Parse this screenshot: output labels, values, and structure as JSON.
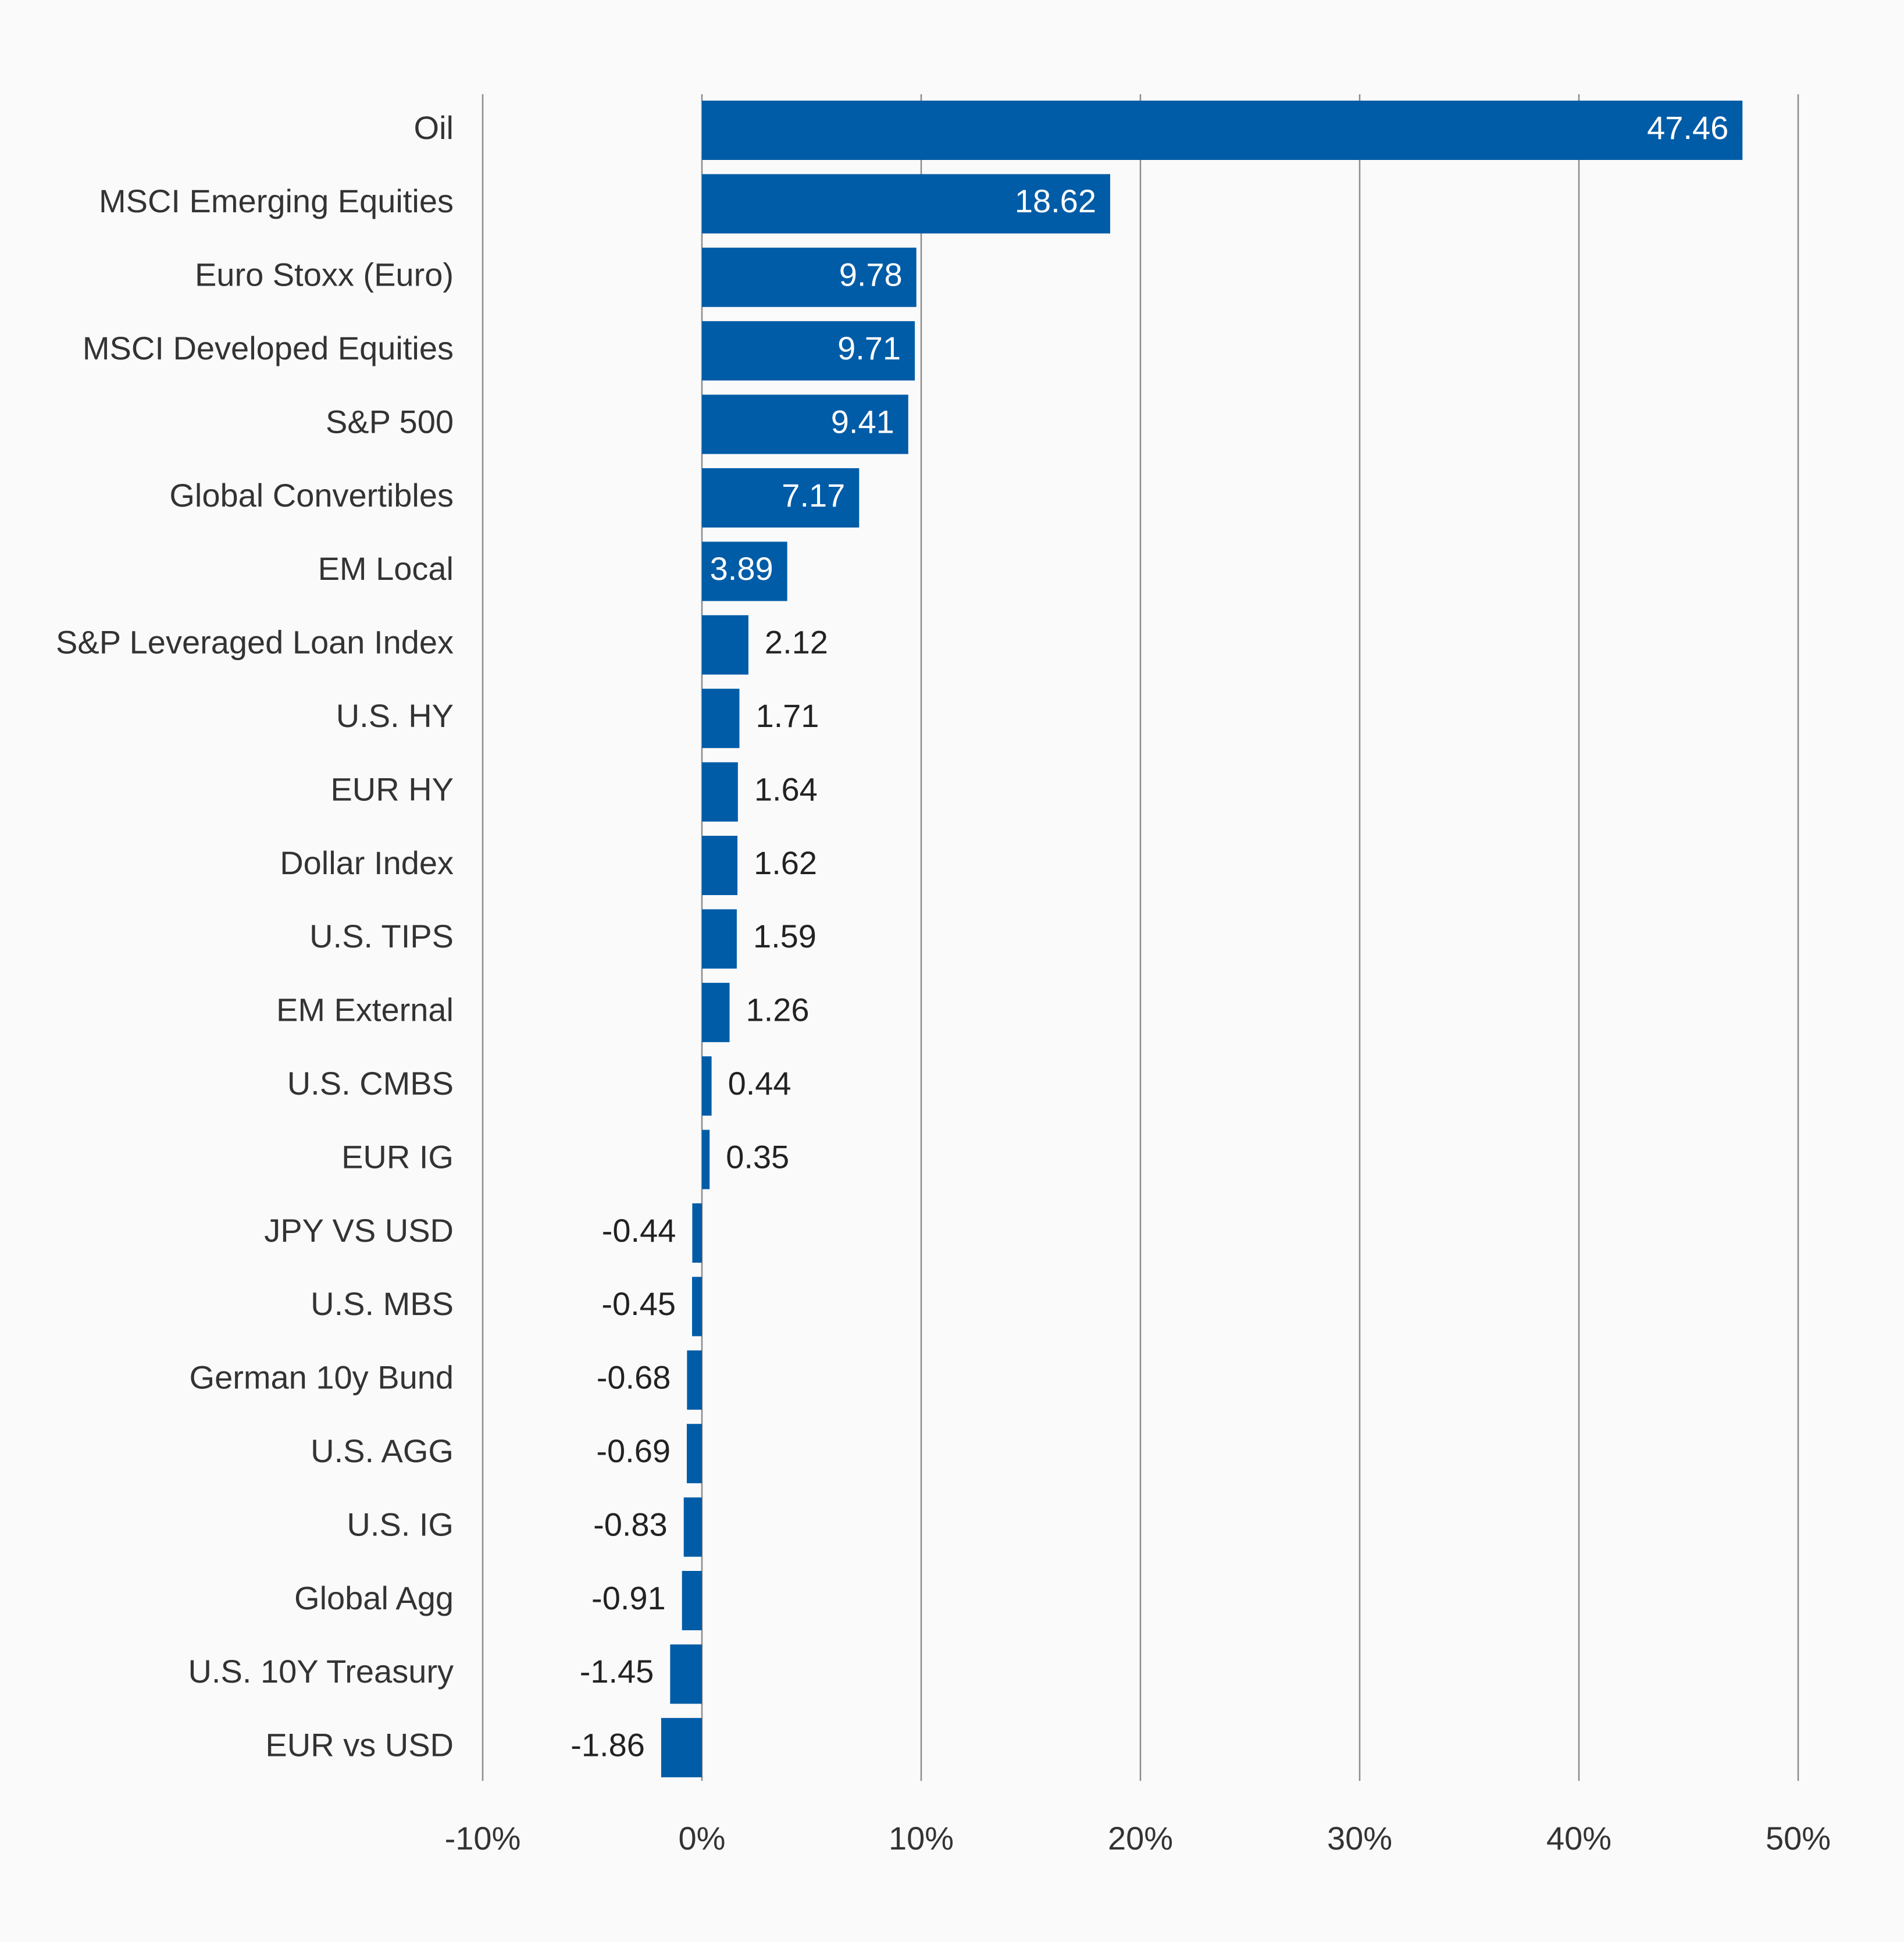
{
  "colors": {
    "background": "#fafafa",
    "bar": "#005ca7",
    "gridline": "#8c8c8c",
    "text": "#333333",
    "label_inside": "#ffffff"
  },
  "chart_data": {
    "type": "bar",
    "orientation": "horizontal",
    "title": "",
    "xlabel": "",
    "ylabel": "",
    "xlim": [
      -10,
      50
    ],
    "x_ticks": [
      -10,
      0,
      10,
      20,
      30,
      40,
      50
    ],
    "x_tick_labels": [
      "-10%",
      "0%",
      "10%",
      "20%",
      "30%",
      "40%",
      "50%"
    ],
    "grid": "vertical",
    "legend": "none",
    "categories": [
      "Oil",
      "MSCI Emerging Equities",
      "Euro Stoxx (Euro)",
      "MSCI Developed Equities",
      "S&P 500",
      "Global Convertibles",
      "EM Local",
      "S&P Leveraged Loan Index",
      "U.S. HY",
      "EUR HY",
      "Dollar Index",
      "U.S. TIPS",
      "EM External",
      "U.S. CMBS",
      "EUR IG",
      "JPY VS USD",
      "U.S. MBS",
      "German 10y Bund",
      "U.S. AGG",
      "U.S. IG",
      "Global Agg",
      "U.S. 10Y Treasury",
      "EUR vs USD"
    ],
    "values": [
      47.46,
      18.62,
      9.78,
      9.71,
      9.41,
      7.17,
      3.89,
      2.12,
      1.71,
      1.64,
      1.62,
      1.59,
      1.26,
      0.44,
      0.35,
      -0.44,
      -0.45,
      -0.68,
      -0.69,
      -0.83,
      -0.91,
      -1.45,
      -1.86
    ],
    "value_labels": [
      "47.46",
      "18.62",
      "9.78",
      "9.71",
      "9.41",
      "7.17",
      "3.89",
      "2.12",
      "1.71",
      "1.64",
      "1.62",
      "1.59",
      "1.26",
      "0.44",
      "0.35",
      "-0.44",
      "-0.45",
      "-0.68",
      "-0.69",
      "-0.83",
      "-0.91",
      "-1.45",
      "-1.86"
    ]
  }
}
